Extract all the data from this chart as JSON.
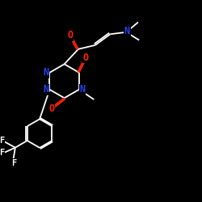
{
  "bg_color": "#000000",
  "bond_color": "#ffffff",
  "O_color": "#ff2200",
  "N_color": "#2244ff",
  "F_color": "#ffffff",
  "lw": 1.3,
  "fs": 8.5,
  "fs_small": 7.5,
  "xlim": [
    0,
    10
  ],
  "ylim": [
    0,
    10
  ]
}
